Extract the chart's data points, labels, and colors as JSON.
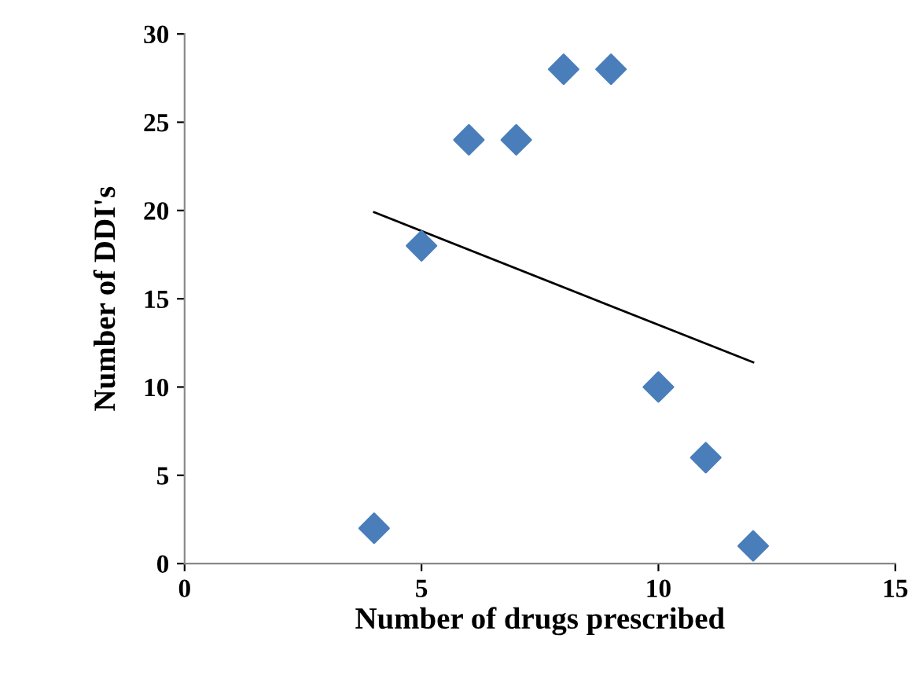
{
  "chart_data": {
    "type": "scatter",
    "xlabel": "Number of drugs prescribed",
    "ylabel": "Number of DDI's",
    "x": [
      4,
      5,
      6,
      7,
      8,
      9,
      10,
      11,
      12
    ],
    "series": [
      {
        "type": "scatter",
        "color": "#4a7ebb",
        "marker": "diamond",
        "values": [
          2,
          18,
          24,
          24,
          28,
          28,
          10,
          6,
          1
        ]
      },
      {
        "type": "line",
        "color": "#000000",
        "x": [
          4,
          12
        ],
        "values": [
          19.9,
          11.4
        ],
        "marker": "none"
      }
    ],
    "xlim": [
      0,
      15
    ],
    "xticks": [
      0,
      5,
      10,
      15
    ],
    "ylim": [
      0,
      30
    ],
    "yticks": [
      0,
      5,
      10,
      15,
      20,
      25,
      30
    ],
    "grid": false,
    "legend": false
  }
}
